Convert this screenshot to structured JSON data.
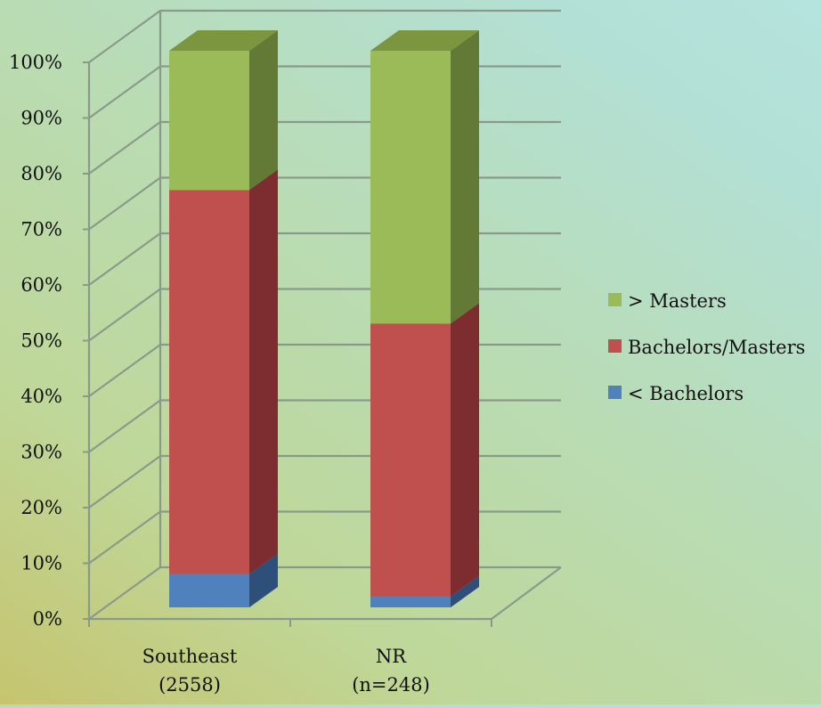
{
  "chart_data": {
    "type": "bar",
    "stacked": true,
    "three_d": true,
    "categories": [
      "Southeast\n(2558)",
      "NR\n(n=248)"
    ],
    "series": [
      {
        "name": "< Bachelors",
        "values": [
          6,
          2
        ],
        "color": "#4f81bd",
        "side_color": "#2e4f7a",
        "top_color": "#6d97c9"
      },
      {
        "name": "Bachelors/Masters",
        "values": [
          69,
          49
        ],
        "color": "#c0504d",
        "side_color": "#7d2c2f",
        "top_color": "#d06a66"
      },
      {
        "name": "> Masters",
        "values": [
          25,
          49
        ],
        "color": "#9bbb59",
        "side_color": "#637a37",
        "top_color": "#7b963f"
      }
    ],
    "y_ticks": [
      "0%",
      "10%",
      "20%",
      "30%",
      "40%",
      "50%",
      "60%",
      "70%",
      "80%",
      "90%",
      "100%"
    ],
    "ylim": [
      0,
      100
    ],
    "grid": true,
    "legend_position": "right",
    "legend_order": [
      "> Masters",
      "Bachelors/Masters",
      "< Bachelors"
    ],
    "title": "",
    "xlabel": "",
    "ylabel": "",
    "gridline_color": "#8a9a8a"
  }
}
